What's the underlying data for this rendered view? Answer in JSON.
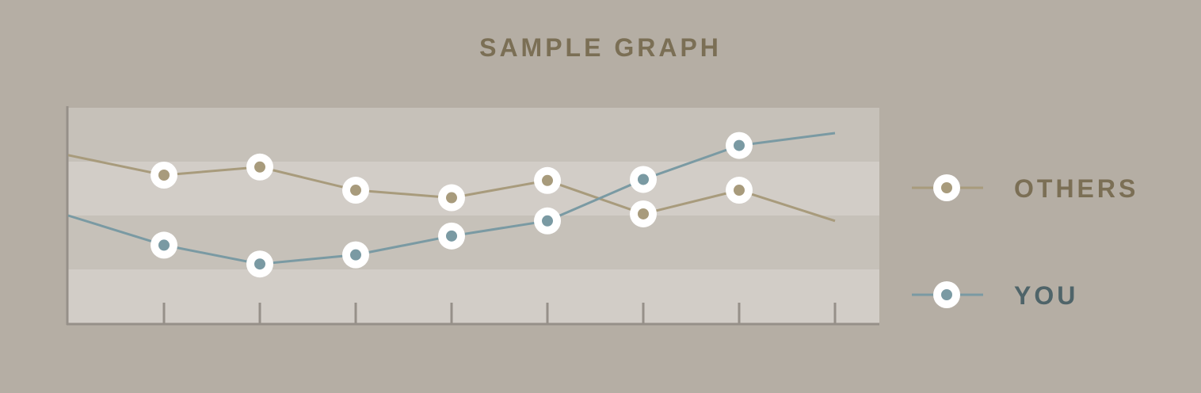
{
  "chart_data": {
    "type": "line",
    "title": "SAMPLE GRAPH",
    "xlabel": "",
    "ylabel": "",
    "grid": "horizontal bands",
    "legend_placement": "right",
    "x": [
      0,
      1,
      2,
      3,
      4,
      5,
      6,
      7,
      8
    ],
    "ylim": [
      0,
      4
    ],
    "series": [
      {
        "name": "OTHERS",
        "color": "#a89b7c",
        "text_color": "#7b6f55",
        "values": [
          3.12,
          2.75,
          2.9,
          2.47,
          2.33,
          2.65,
          2.03,
          2.47,
          1.9
        ],
        "markers": [
          false,
          true,
          true,
          true,
          true,
          true,
          true,
          true,
          false
        ]
      },
      {
        "name": "YOU",
        "color": "#7a9aa3",
        "text_color": "#4f6469",
        "values": [
          2.0,
          1.45,
          1.1,
          1.27,
          1.62,
          1.9,
          2.67,
          3.3,
          3.53
        ],
        "markers": [
          false,
          true,
          true,
          true,
          true,
          true,
          true,
          true,
          false
        ]
      }
    ]
  }
}
